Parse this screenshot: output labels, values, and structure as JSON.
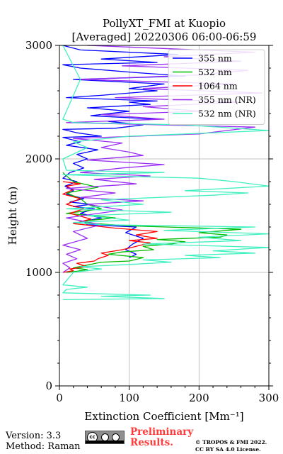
{
  "chart_data": {
    "type": "line",
    "title": "PollyXT_FMI at Kuopio",
    "subtitle": "[Averaged] 20220306 06:00-06:59",
    "xlabel": "Extinction Coefficient [Mm⁻¹]",
    "ylabel": "Height (m)",
    "xlim": [
      0,
      300
    ],
    "ylim": [
      0,
      3000
    ],
    "xticks": [
      0,
      100,
      200,
      300
    ],
    "yticks": [
      0,
      1000,
      2000,
      3000
    ],
    "grid": true,
    "legend_position": "top-right",
    "series": [
      {
        "name": "355 nm",
        "color": "#0000ff",
        "points": [
          [
            100,
            1130
          ],
          [
            110,
            1160
          ],
          [
            95,
            1200
          ],
          [
            105,
            1250
          ],
          [
            120,
            1300
          ],
          [
            95,
            1350
          ],
          [
            110,
            1400
          ],
          [
            40,
            1420
          ],
          [
            35,
            1450
          ],
          [
            60,
            1480
          ],
          [
            30,
            1520
          ],
          [
            50,
            1560
          ],
          [
            20,
            1580
          ],
          [
            45,
            1600
          ],
          [
            15,
            1620
          ],
          [
            35,
            1650
          ],
          [
            10,
            1690
          ],
          [
            20,
            1720
          ],
          [
            8,
            1760
          ],
          [
            25,
            1800
          ],
          [
            5,
            1830
          ],
          [
            15,
            1880
          ],
          [
            35,
            1920
          ],
          [
            20,
            1960
          ],
          [
            40,
            2000
          ],
          [
            25,
            2040
          ],
          [
            55,
            2080
          ],
          [
            10,
            2120
          ],
          [
            30,
            2150
          ],
          [
            5,
            2190
          ],
          [
            60,
            2200
          ],
          [
            25,
            2230
          ],
          [
            5,
            2260
          ],
          [
            80,
            2270
          ],
          [
            120,
            2300
          ],
          [
            70,
            2330
          ],
          [
            140,
            2350
          ],
          [
            45,
            2380
          ],
          [
            100,
            2420
          ],
          [
            40,
            2450
          ],
          [
            130,
            2480
          ],
          [
            100,
            2500
          ],
          [
            140,
            2510
          ],
          [
            10,
            2540
          ],
          [
            60,
            2560
          ],
          [
            140,
            2600
          ],
          [
            100,
            2620
          ],
          [
            150,
            2660
          ],
          [
            20,
            2700
          ],
          [
            180,
            2730
          ],
          [
            110,
            2760
          ],
          [
            30,
            2800
          ],
          [
            5,
            2830
          ],
          [
            140,
            2850
          ],
          [
            60,
            2880
          ],
          [
            170,
            2920
          ],
          [
            30,
            2960
          ],
          [
            5,
            3000
          ]
        ]
      },
      {
        "name": "532 nm",
        "color": "#00bb00",
        "points": [
          [
            10,
            1000
          ],
          [
            25,
            1010
          ],
          [
            40,
            1025
          ],
          [
            20,
            1040
          ],
          [
            60,
            1090
          ],
          [
            100,
            1100
          ],
          [
            120,
            1130
          ],
          [
            70,
            1160
          ],
          [
            90,
            1180
          ],
          [
            135,
            1200
          ],
          [
            120,
            1230
          ],
          [
            160,
            1250
          ],
          [
            180,
            1270
          ],
          [
            140,
            1290
          ],
          [
            230,
            1310
          ],
          [
            240,
            1330
          ],
          [
            200,
            1350
          ],
          [
            260,
            1380
          ],
          [
            100,
            1410
          ],
          [
            50,
            1430
          ],
          [
            30,
            1450
          ],
          [
            80,
            1480
          ],
          [
            10,
            1520
          ],
          [
            60,
            1560
          ],
          [
            40,
            1600
          ],
          [
            30,
            1650
          ],
          [
            10,
            1700
          ],
          [
            55,
            1750
          ],
          [
            20,
            1800
          ],
          [
            10,
            1850
          ],
          [
            5,
            1880
          ]
        ]
      },
      {
        "name": "1064 nm",
        "color": "#ff0000",
        "points": [
          [
            5,
            1000
          ],
          [
            20,
            1015
          ],
          [
            15,
            1030
          ],
          [
            40,
            1050
          ],
          [
            25,
            1080
          ],
          [
            50,
            1100
          ],
          [
            55,
            1120
          ],
          [
            70,
            1150
          ],
          [
            60,
            1170
          ],
          [
            90,
            1200
          ],
          [
            110,
            1230
          ],
          [
            130,
            1260
          ],
          [
            100,
            1280
          ],
          [
            140,
            1300
          ],
          [
            110,
            1330
          ],
          [
            140,
            1360
          ],
          [
            80,
            1390
          ],
          [
            50,
            1410
          ],
          [
            20,
            1430
          ],
          [
            45,
            1470
          ],
          [
            15,
            1520
          ],
          [
            35,
            1560
          ],
          [
            10,
            1600
          ],
          [
            30,
            1650
          ],
          [
            5,
            1690
          ],
          [
            20,
            1730
          ],
          [
            10,
            1760
          ],
          [
            30,
            1780
          ],
          [
            5,
            1800
          ]
        ]
      },
      {
        "name": "355 nm (NR)",
        "color": "#9a2ef2",
        "points": [
          [
            5,
            1000
          ],
          [
            15,
            1040
          ],
          [
            5,
            1080
          ],
          [
            25,
            1120
          ],
          [
            10,
            1160
          ],
          [
            30,
            1200
          ],
          [
            5,
            1240
          ],
          [
            40,
            1300
          ],
          [
            20,
            1360
          ],
          [
            60,
            1420
          ],
          [
            10,
            1480
          ],
          [
            90,
            1550
          ],
          [
            40,
            1600
          ],
          [
            120,
            1630
          ],
          [
            30,
            1660
          ],
          [
            80,
            1700
          ],
          [
            10,
            1740
          ],
          [
            110,
            1780
          ],
          [
            50,
            1820
          ],
          [
            130,
            1850
          ],
          [
            30,
            1880
          ],
          [
            90,
            1920
          ],
          [
            150,
            1950
          ],
          [
            40,
            1990
          ],
          [
            120,
            2030
          ],
          [
            100,
            2060
          ],
          [
            60,
            2100
          ],
          [
            90,
            2140
          ],
          [
            20,
            2180
          ],
          [
            200,
            2220
          ],
          [
            240,
            2250
          ],
          [
            280,
            2280
          ],
          [
            10,
            2320
          ],
          [
            150,
            2350
          ],
          [
            60,
            2390
          ],
          [
            200,
            2420
          ],
          [
            120,
            2460
          ],
          [
            260,
            2500
          ],
          [
            80,
            2540
          ],
          [
            290,
            2580
          ],
          [
            120,
            2620
          ],
          [
            250,
            2660
          ],
          [
            30,
            2700
          ],
          [
            200,
            2740
          ],
          [
            270,
            2780
          ],
          [
            90,
            2820
          ],
          [
            260,
            2860
          ],
          [
            150,
            2900
          ],
          [
            280,
            2940
          ],
          [
            120,
            2980
          ],
          [
            40,
            3000
          ]
        ]
      },
      {
        "name": "532 nm (NR)",
        "color": "#40f0c0",
        "points": [
          [
            5,
            760
          ],
          [
            150,
            770
          ],
          [
            60,
            790
          ],
          [
            130,
            800
          ],
          [
            5,
            820
          ],
          [
            10,
            850
          ],
          [
            40,
            870
          ],
          [
            5,
            890
          ],
          [
            20,
            1000
          ],
          [
            60,
            1030
          ],
          [
            30,
            1050
          ],
          [
            100,
            1070
          ],
          [
            160,
            1090
          ],
          [
            120,
            1110
          ],
          [
            230,
            1130
          ],
          [
            180,
            1150
          ],
          [
            280,
            1170
          ],
          [
            220,
            1190
          ],
          [
            300,
            1220
          ],
          [
            120,
            1250
          ],
          [
            260,
            1280
          ],
          [
            200,
            1310
          ],
          [
            300,
            1340
          ],
          [
            150,
            1370
          ],
          [
            280,
            1400
          ],
          [
            60,
            1420
          ],
          [
            20,
            1440
          ],
          [
            100,
            1460
          ],
          [
            40,
            1500
          ],
          [
            160,
            1530
          ],
          [
            10,
            1560
          ],
          [
            120,
            1600
          ],
          [
            60,
            1640
          ],
          [
            220,
            1680
          ],
          [
            270,
            1700
          ],
          [
            180,
            1720
          ],
          [
            300,
            1760
          ],
          [
            250,
            1800
          ],
          [
            200,
            1830
          ],
          [
            5,
            1860
          ],
          [
            150,
            1880
          ],
          [
            10,
            1900
          ],
          [
            5,
            2000
          ],
          [
            40,
            2100
          ],
          [
            20,
            2150
          ],
          [
            100,
            2200
          ],
          [
            300,
            2250
          ],
          [
            180,
            2300
          ],
          [
            20,
            2320
          ],
          [
            5,
            2350
          ],
          [
            30,
            2700
          ],
          [
            5,
            3000
          ]
        ]
      }
    ]
  },
  "footer": {
    "version": "Version: 3.3",
    "method": "Method: Raman",
    "badge_text": "cc",
    "preliminary_line1": "Preliminary",
    "preliminary_line2": "Results.",
    "copyright_line1": "© TROPOS & FMI 2022.",
    "copyright_line2": "CC BY SA 4.0 License."
  }
}
